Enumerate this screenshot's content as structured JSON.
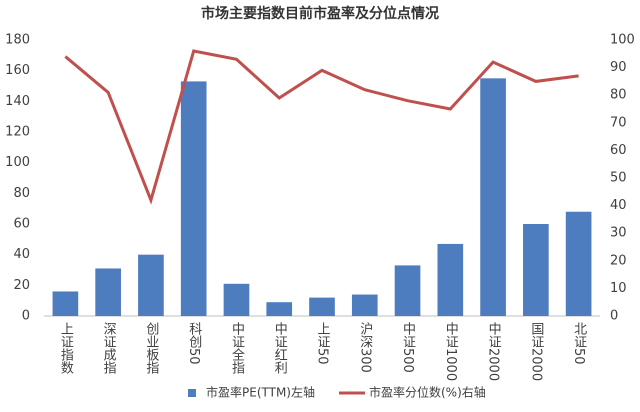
{
  "chart_data": {
    "type": "bar",
    "title": "市场主要指数目前市盈率及分位点情况",
    "categories": [
      "上证指数",
      "深证成指",
      "创业板指",
      "科创50",
      "中证全指",
      "中证红利",
      "上证50",
      "沪深300",
      "中证500",
      "中证1000",
      "中证2000",
      "国证2000",
      "北证50"
    ],
    "series": [
      {
        "name": "市盈率PE(TTM)左轴",
        "type": "bar",
        "color": "#4e7dbf",
        "values": [
          16,
          31,
          40,
          153,
          21,
          9,
          12,
          14,
          33,
          47,
          155,
          60,
          68
        ]
      },
      {
        "name": "市盈率分位数(%)右轴",
        "type": "line",
        "axis": "y2",
        "color": "#c0504d",
        "values": [
          94,
          81,
          42,
          96,
          93,
          79,
          89,
          82,
          78,
          75,
          92,
          85,
          87
        ]
      }
    ],
    "ylim": [
      0,
      180
    ],
    "yticks": [
      0,
      20,
      40,
      60,
      80,
      100,
      120,
      140,
      160,
      180
    ],
    "y2lim": [
      0,
      100
    ],
    "y2ticks": [
      0,
      10,
      20,
      30,
      40,
      50,
      60,
      70,
      80,
      90,
      100
    ],
    "legend": "bottom"
  }
}
